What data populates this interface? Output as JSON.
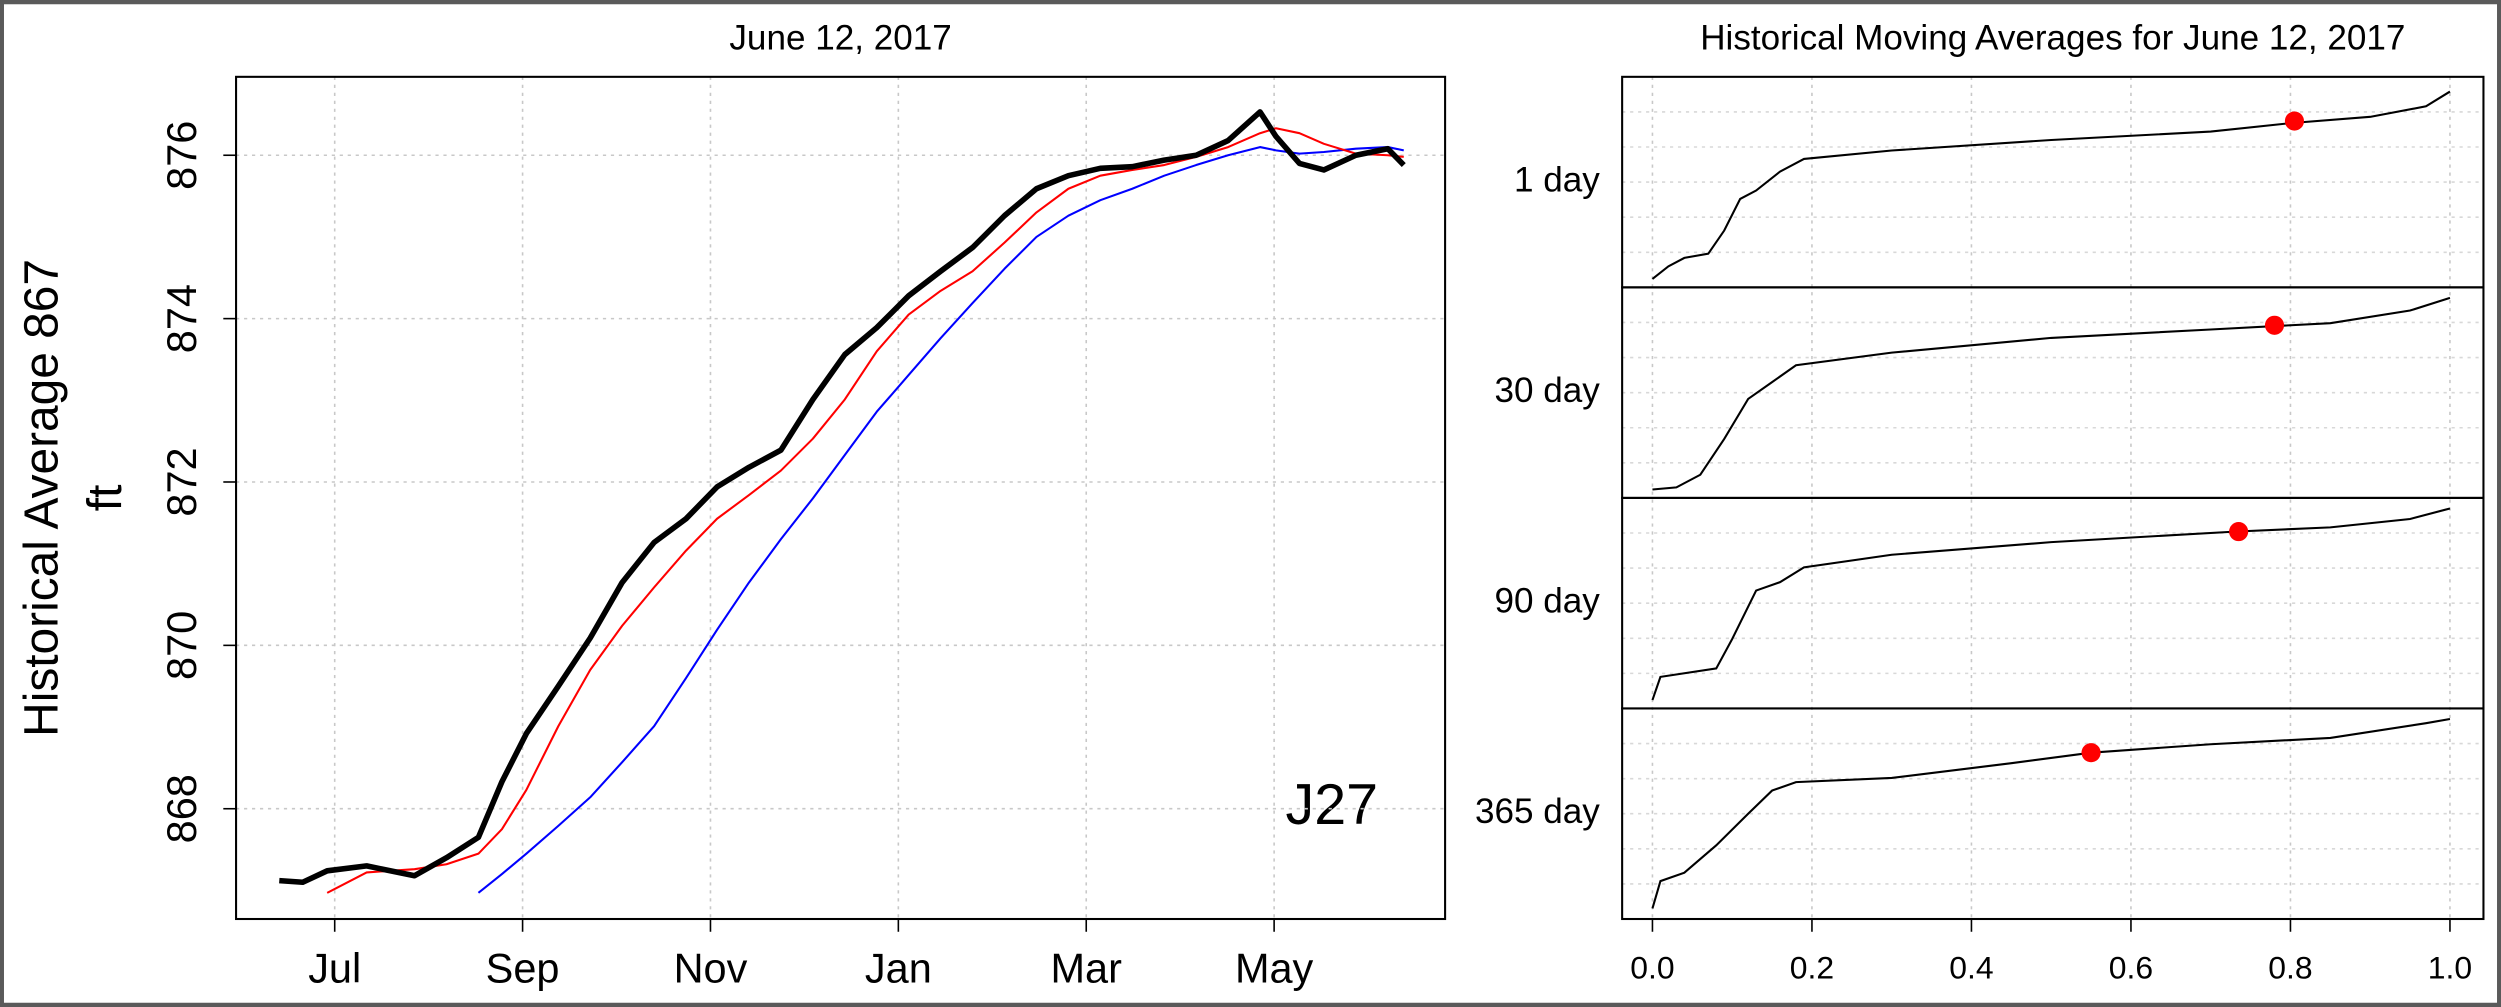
{
  "chart_data": [
    {
      "type": "line",
      "title": "June 12, 2017",
      "ylabel": [
        "Historical Average 867",
        "ft"
      ],
      "annotation": "J27",
      "x": [
        6.41,
        6.66,
        6.92,
        7.34,
        7.85,
        8.19,
        8.53,
        8.78,
        9.04,
        9.38,
        9.72,
        10.06,
        10.4,
        10.74,
        11.07,
        11.41,
        11.75,
        12.09,
        12.43,
        12.77,
        13.11,
        13.45,
        13.79,
        14.13,
        14.47,
        14.81,
        15.15,
        15.49,
        15.83,
        16.17,
        16.51,
        16.85,
        17.02,
        17.27,
        17.53,
        17.87,
        18.21,
        18.38
      ],
      "series": [
        {
          "color": "#000000",
          "values": [
            867.12,
            867.1,
            867.24,
            867.3,
            867.18,
            867.4,
            867.65,
            868.33,
            868.92,
            869.5,
            870.09,
            870.77,
            871.26,
            871.55,
            871.94,
            872.18,
            872.39,
            873.01,
            873.56,
            873.89,
            874.28,
            874.58,
            874.87,
            875.26,
            875.59,
            875.75,
            875.84,
            875.86,
            875.94,
            876.0,
            876.18,
            876.53,
            876.23,
            875.9,
            875.82,
            876.0,
            876.08,
            875.88
          ]
        },
        {
          "color": "#ff0000",
          "values": [
            null,
            null,
            866.97,
            867.22,
            867.26,
            867.32,
            867.45,
            867.75,
            868.23,
            869.01,
            869.7,
            870.24,
            870.71,
            871.16,
            871.55,
            871.84,
            872.14,
            872.53,
            873.01,
            873.6,
            874.05,
            874.34,
            874.58,
            874.93,
            875.3,
            875.59,
            875.75,
            875.82,
            875.88,
            875.98,
            876.1,
            876.27,
            876.33,
            876.27,
            876.14,
            876.02,
            876.0,
            875.98
          ]
        },
        {
          "color": "#0000ff",
          "values": [
            null,
            null,
            null,
            null,
            null,
            null,
            866.97,
            867.2,
            867.45,
            867.79,
            868.14,
            868.57,
            869.01,
            869.6,
            870.19,
            870.77,
            871.3,
            871.8,
            872.33,
            872.86,
            873.31,
            873.76,
            874.19,
            874.61,
            875.0,
            875.26,
            875.45,
            875.59,
            875.75,
            875.88,
            876.0,
            876.1,
            876.06,
            876.02,
            876.04,
            876.08,
            876.1,
            876.06
          ]
        }
      ],
      "xlim": [
        5.95,
        18.82
      ],
      "xticks": [
        {
          "value": 7,
          "label": "Jul"
        },
        {
          "value": 9,
          "label": "Sep"
        },
        {
          "value": 11,
          "label": "Nov"
        },
        {
          "value": 13,
          "label": "Jan"
        },
        {
          "value": 15,
          "label": "Mar"
        },
        {
          "value": 17,
          "label": "May"
        }
      ],
      "ylim": [
        866.65,
        876.96
      ],
      "yticks": [
        868,
        870,
        872,
        874,
        876
      ],
      "grid": true
    },
    {
      "type": "panels",
      "title": "Historical Moving Averages for June 12, 2017",
      "line_color": "#000000",
      "point_color": "#ff0000",
      "xlim": [
        -0.038,
        1.042
      ],
      "xticks": [
        {
          "value": 0,
          "label": "0.0"
        },
        {
          "value": 0.2,
          "label": "0.2"
        },
        {
          "value": 0.4,
          "label": "0.4"
        },
        {
          "value": 0.6,
          "label": "0.6"
        },
        {
          "value": 0.8,
          "label": "0.8"
        },
        {
          "value": 1,
          "label": "1.0"
        }
      ],
      "ylim": [
        0,
        1
      ],
      "grid": true,
      "panels": [
        {
          "label": "1 day",
          "x": [
            0,
            0.02,
            0.04,
            0.07,
            0.09,
            0.11,
            0.13,
            0.16,
            0.19,
            0.3,
            0.5,
            0.7,
            0.8,
            0.9,
            0.97,
            1.0
          ],
          "values": [
            0.04,
            0.1,
            0.14,
            0.16,
            0.27,
            0.42,
            0.46,
            0.55,
            0.61,
            0.65,
            0.7,
            0.74,
            0.78,
            0.81,
            0.86,
            0.93
          ],
          "point_x": 0.805,
          "point_y": 0.79
        },
        {
          "label": "30 day",
          "x": [
            0,
            0.03,
            0.06,
            0.09,
            0.12,
            0.15,
            0.18,
            0.3,
            0.5,
            0.7,
            0.85,
            0.95,
            1.0
          ],
          "values": [
            0.04,
            0.05,
            0.11,
            0.28,
            0.47,
            0.55,
            0.63,
            0.69,
            0.76,
            0.8,
            0.83,
            0.89,
            0.95
          ],
          "point_x": 0.78,
          "point_y": 0.82
        },
        {
          "label": "90 day",
          "x": [
            0,
            0.01,
            0.08,
            0.1,
            0.13,
            0.16,
            0.19,
            0.3,
            0.5,
            0.73,
            0.85,
            0.95,
            1.0
          ],
          "values": [
            0.04,
            0.15,
            0.19,
            0.33,
            0.56,
            0.6,
            0.67,
            0.73,
            0.79,
            0.84,
            0.86,
            0.9,
            0.95
          ],
          "point_x": 0.735,
          "point_y": 0.84
        },
        {
          "label": "365 day",
          "x": [
            0,
            0.01,
            0.04,
            0.08,
            0.12,
            0.15,
            0.18,
            0.3,
            0.45,
            0.55,
            0.7,
            0.85,
            0.97,
            1.0
          ],
          "values": [
            0.05,
            0.18,
            0.22,
            0.35,
            0.5,
            0.61,
            0.65,
            0.67,
            0.74,
            0.79,
            0.83,
            0.86,
            0.93,
            0.95
          ],
          "point_x": 0.55,
          "point_y": 0.79
        }
      ]
    }
  ]
}
